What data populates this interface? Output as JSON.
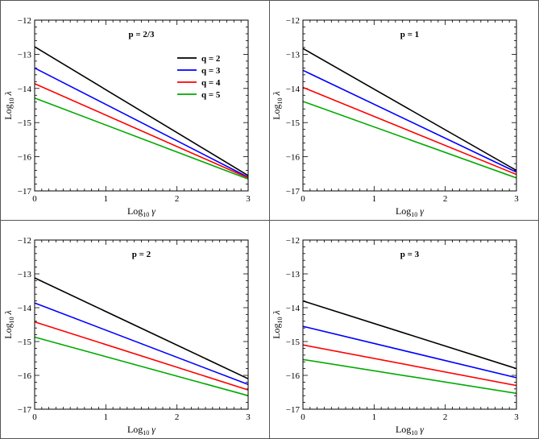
{
  "chart_data": [
    {
      "type": "line",
      "title": "p = 2/3",
      "xlabel": "Log",
      "xlabel_sub": "10",
      "xlabel_sym": "γ",
      "ylabel": "Log",
      "ylabel_sub": "10",
      "ylabel_sym": "λ",
      "xlim": [
        0,
        3
      ],
      "ylim": [
        -17,
        -12
      ],
      "xticks": [
        "0",
        "1",
        "2",
        "3"
      ],
      "yticks": [
        "−12",
        "−13",
        "−14",
        "−15",
        "−16",
        "−17"
      ],
      "legend": "top-right",
      "series": [
        {
          "name": "q = 2",
          "color": "#000000",
          "x": [
            0,
            3
          ],
          "y": [
            -12.78,
            -16.55
          ]
        },
        {
          "name": "q = 3",
          "color": "#0000ff",
          "x": [
            0,
            3
          ],
          "y": [
            -13.4,
            -16.6
          ]
        },
        {
          "name": "q = 4",
          "color": "#ff0000",
          "x": [
            0,
            3
          ],
          "y": [
            -13.86,
            -16.62
          ]
        },
        {
          "name": "q = 5",
          "color": "#00aa00",
          "x": [
            0,
            3
          ],
          "y": [
            -14.28,
            -16.65
          ]
        }
      ]
    },
    {
      "type": "line",
      "title": "p = 1",
      "xlabel": "Log",
      "xlabel_sub": "10",
      "xlabel_sym": "γ",
      "ylabel": "Log",
      "ylabel_sub": "10",
      "ylabel_sym": "λ",
      "xlim": [
        0,
        3
      ],
      "ylim": [
        -17,
        -12
      ],
      "xticks": [
        "0",
        "1",
        "2",
        "3"
      ],
      "yticks": [
        "−12",
        "−13",
        "−14",
        "−15",
        "−16",
        "−17"
      ],
      "series": [
        {
          "name": "q = 2",
          "color": "#000000",
          "x": [
            0,
            3
          ],
          "y": [
            -12.83,
            -16.4
          ]
        },
        {
          "name": "q = 3",
          "color": "#0000ff",
          "x": [
            0,
            3
          ],
          "y": [
            -13.47,
            -16.45
          ]
        },
        {
          "name": "q = 4",
          "color": "#ff0000",
          "x": [
            0,
            3
          ],
          "y": [
            -13.97,
            -16.52
          ]
        },
        {
          "name": "q = 5",
          "color": "#00aa00",
          "x": [
            0,
            3
          ],
          "y": [
            -14.38,
            -16.62
          ]
        }
      ]
    },
    {
      "type": "line",
      "title": "p = 2",
      "xlabel": "Log",
      "xlabel_sub": "10",
      "xlabel_sym": "γ",
      "ylabel": "Log",
      "ylabel_sub": "10",
      "ylabel_sym": "λ",
      "xlim": [
        0,
        3
      ],
      "ylim": [
        -17,
        -12
      ],
      "xticks": [
        "0",
        "1",
        "2",
        "3"
      ],
      "yticks": [
        "−12",
        "−13",
        "−14",
        "−15",
        "−16",
        "−17"
      ],
      "series": [
        {
          "name": "q = 2",
          "color": "#000000",
          "x": [
            0,
            3
          ],
          "y": [
            -13.12,
            -16.1
          ]
        },
        {
          "name": "q = 3",
          "color": "#0000ff",
          "x": [
            0,
            3
          ],
          "y": [
            -13.86,
            -16.27
          ]
        },
        {
          "name": "q = 4",
          "color": "#ff0000",
          "x": [
            0,
            3
          ],
          "y": [
            -14.42,
            -16.43
          ]
        },
        {
          "name": "q = 5",
          "color": "#00aa00",
          "x": [
            0,
            3
          ],
          "y": [
            -14.87,
            -16.6
          ]
        }
      ]
    },
    {
      "type": "line",
      "title": "p = 3",
      "xlabel": "Log",
      "xlabel_sub": "10",
      "xlabel_sym": "γ",
      "ylabel": "Log",
      "ylabel_sub": "10",
      "ylabel_sym": "λ",
      "xlim": [
        0,
        3
      ],
      "ylim": [
        -17,
        -12
      ],
      "xticks": [
        "0",
        "1",
        "2",
        "3"
      ],
      "yticks": [
        "−12",
        "−13",
        "−14",
        "−15",
        "−16",
        "−17"
      ],
      "series": [
        {
          "name": "q = 2",
          "color": "#000000",
          "x": [
            0,
            3
          ],
          "y": [
            -13.8,
            -15.8
          ]
        },
        {
          "name": "q = 3",
          "color": "#0000ff",
          "x": [
            0,
            3
          ],
          "y": [
            -14.55,
            -16.07
          ]
        },
        {
          "name": "q = 4",
          "color": "#ff0000",
          "x": [
            0,
            3
          ],
          "y": [
            -15.1,
            -16.3
          ]
        },
        {
          "name": "q = 5",
          "color": "#00aa00",
          "x": [
            0,
            3
          ],
          "y": [
            -15.53,
            -16.53
          ]
        }
      ]
    }
  ]
}
